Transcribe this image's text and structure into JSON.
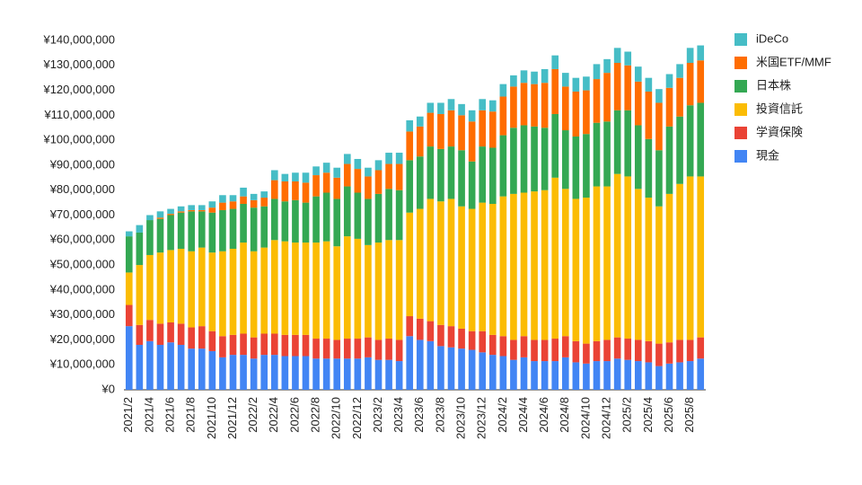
{
  "chart_data": {
    "type": "stacked_bar",
    "categories": [
      "2021/2",
      null,
      "2021/4",
      null,
      "2021/6",
      null,
      "2021/8",
      null,
      "2021/10",
      null,
      "2021/12",
      null,
      "2022/2",
      null,
      "2022/4",
      null,
      "2022/6",
      null,
      "2022/8",
      null,
      "2022/10",
      null,
      "2022/12",
      null,
      "2023/2",
      null,
      "2023/4",
      null,
      "2023/6",
      null,
      "2023/8",
      null,
      "2023/10",
      null,
      "2023/12",
      null,
      "2024/2",
      null,
      "2024/4",
      null,
      "2024/6",
      null,
      "2024/8",
      null,
      "2024/10",
      null,
      "2024/12",
      null,
      "2025/2",
      null,
      "2025/4",
      null,
      "2025/6",
      null,
      "2025/8",
      null
    ],
    "series": [
      {
        "name": "現金",
        "color": "#4285f4",
        "values": [
          25500000,
          18000000,
          19500000,
          18000000,
          19000000,
          18000000,
          16500000,
          16500000,
          15500000,
          13000000,
          14000000,
          14000000,
          12500000,
          14000000,
          14000000,
          13500000,
          13500000,
          13500000,
          12500000,
          12500000,
          12500000,
          12500000,
          12500000,
          13000000,
          12000000,
          12000000,
          11500000,
          21500000,
          20000000,
          19500000,
          17500000,
          17000000,
          16500000,
          16000000,
          15000000,
          14000000,
          13500000,
          12000000,
          13000000,
          11500000,
          11500000,
          11500000,
          13000000,
          11000000,
          10500000,
          11500000,
          11500000,
          12500000,
          12000000,
          11500000,
          11000000,
          9500000,
          10500000,
          11000000,
          11500000,
          12500000
        ]
      },
      {
        "name": "学資保険",
        "color": "#ea4335",
        "values": [
          8500000,
          8000000,
          8500000,
          8500000,
          8000000,
          8500000,
          8500000,
          9000000,
          8000000,
          8500000,
          8000000,
          8500000,
          8500000,
          8500000,
          8500000,
          8500000,
          8500000,
          8500000,
          8000000,
          8000000,
          7500000,
          8000000,
          8000000,
          8000000,
          8000000,
          8500000,
          8500000,
          8000000,
          8500000,
          8000000,
          8500000,
          8500000,
          8000000,
          7500000,
          8500000,
          8000000,
          8000000,
          8000000,
          8500000,
          8500000,
          8500000,
          9000000,
          8500000,
          8500000,
          8000000,
          8000000,
          8500000,
          8500000,
          8500000,
          8500000,
          8500000,
          9000000,
          8500000,
          9000000,
          8500000,
          8500000
        ]
      },
      {
        "name": "投資信託",
        "color": "#fbbc04",
        "values": [
          13000000,
          24000000,
          26000000,
          28500000,
          29000000,
          30000000,
          30500000,
          31500000,
          31500000,
          34000000,
          34500000,
          36500000,
          34500000,
          34500000,
          37500000,
          37500000,
          37000000,
          37000000,
          38500000,
          39000000,
          37500000,
          41000000,
          40000000,
          37000000,
          39000000,
          39500000,
          40000000,
          41500000,
          44000000,
          49000000,
          49500000,
          51000000,
          49000000,
          49000000,
          51500000,
          52500000,
          56000000,
          58500000,
          57500000,
          59500000,
          60000000,
          64500000,
          59000000,
          57000000,
          58500000,
          62000000,
          61500000,
          65500000,
          65000000,
          60500000,
          57500000,
          55000000,
          59500000,
          62500000,
          65500000,
          64500000
        ]
      },
      {
        "name": "日本株",
        "color": "#34a853",
        "values": [
          14500000,
          13000000,
          14000000,
          13500000,
          14000000,
          14500000,
          16000000,
          14500000,
          16000000,
          16500000,
          16000000,
          15500000,
          17500000,
          16500000,
          16500000,
          16000000,
          17000000,
          16000000,
          18500000,
          19500000,
          19000000,
          20000000,
          18500000,
          18500000,
          19500000,
          20500000,
          20000000,
          21000000,
          21000000,
          21000000,
          21000000,
          21000000,
          22500000,
          19000000,
          22500000,
          22500000,
          24500000,
          26500000,
          27000000,
          26000000,
          25000000,
          25500000,
          23500000,
          25000000,
          25500000,
          25500000,
          26000000,
          25500000,
          26500000,
          25500000,
          23500000,
          22500000,
          27000000,
          27000000,
          28500000,
          29500000
        ]
      },
      {
        "name": "米国ETF/MMF",
        "color": "#ff6d01",
        "values": [
          0,
          0,
          0,
          500000,
          500000,
          500000,
          500000,
          500000,
          2000000,
          3000000,
          3000000,
          3000000,
          3000000,
          3500000,
          7500000,
          8000000,
          7500000,
          8000000,
          8500000,
          8000000,
          8500000,
          9000000,
          9500000,
          9000000,
          9500000,
          10000000,
          10500000,
          11500000,
          12000000,
          13500000,
          14000000,
          14500000,
          14000000,
          16000000,
          14500000,
          14500000,
          15500000,
          16500000,
          17000000,
          17000000,
          18000000,
          18000000,
          17500000,
          18000000,
          17500000,
          17500000,
          19500000,
          19000000,
          18000000,
          17500000,
          19000000,
          19000000,
          15500000,
          15500000,
          17000000,
          17000000
        ]
      },
      {
        "name": "iDeCo",
        "color": "#46bdc6",
        "values": [
          2000000,
          3000000,
          2000000,
          2500000,
          2000000,
          2000000,
          2000000,
          2000000,
          2500000,
          3000000,
          2500000,
          3500000,
          2500000,
          2500000,
          4000000,
          3000000,
          3500000,
          4000000,
          3500000,
          4000000,
          4000000,
          4000000,
          4000000,
          3500000,
          4000000,
          4500000,
          4500000,
          4500000,
          4000000,
          4000000,
          4500000,
          4500000,
          4500000,
          4500000,
          4500000,
          4500000,
          5000000,
          4500000,
          5000000,
          5000000,
          5500000,
          5500000,
          5500000,
          5500000,
          5500000,
          6000000,
          5500000,
          6000000,
          5500000,
          6000000,
          5500000,
          5500000,
          5500000,
          5500000,
          6000000,
          6000000
        ]
      }
    ],
    "ylim": [
      0,
      140000000
    ],
    "yticks": [
      {
        "value": 0,
        "label": "¥0"
      },
      {
        "value": 10000000,
        "label": "¥10,000,000"
      },
      {
        "value": 20000000,
        "label": "¥20,000,000"
      },
      {
        "value": 30000000,
        "label": "¥30,000,000"
      },
      {
        "value": 40000000,
        "label": "¥40,000,000"
      },
      {
        "value": 50000000,
        "label": "¥50,000,000"
      },
      {
        "value": 60000000,
        "label": "¥60,000,000"
      },
      {
        "value": 70000000,
        "label": "¥70,000,000"
      },
      {
        "value": 80000000,
        "label": "¥80,000,000"
      },
      {
        "value": 90000000,
        "label": "¥90,000,000"
      },
      {
        "value": 100000000,
        "label": "¥100,000,000"
      },
      {
        "value": 110000000,
        "label": "¥110,000,000"
      },
      {
        "value": 120000000,
        "label": "¥120,000,000"
      },
      {
        "value": 130000000,
        "label": "¥130,000,000"
      },
      {
        "value": 140000000,
        "label": "¥140,000,000"
      }
    ],
    "grid": false,
    "legend": "right"
  }
}
